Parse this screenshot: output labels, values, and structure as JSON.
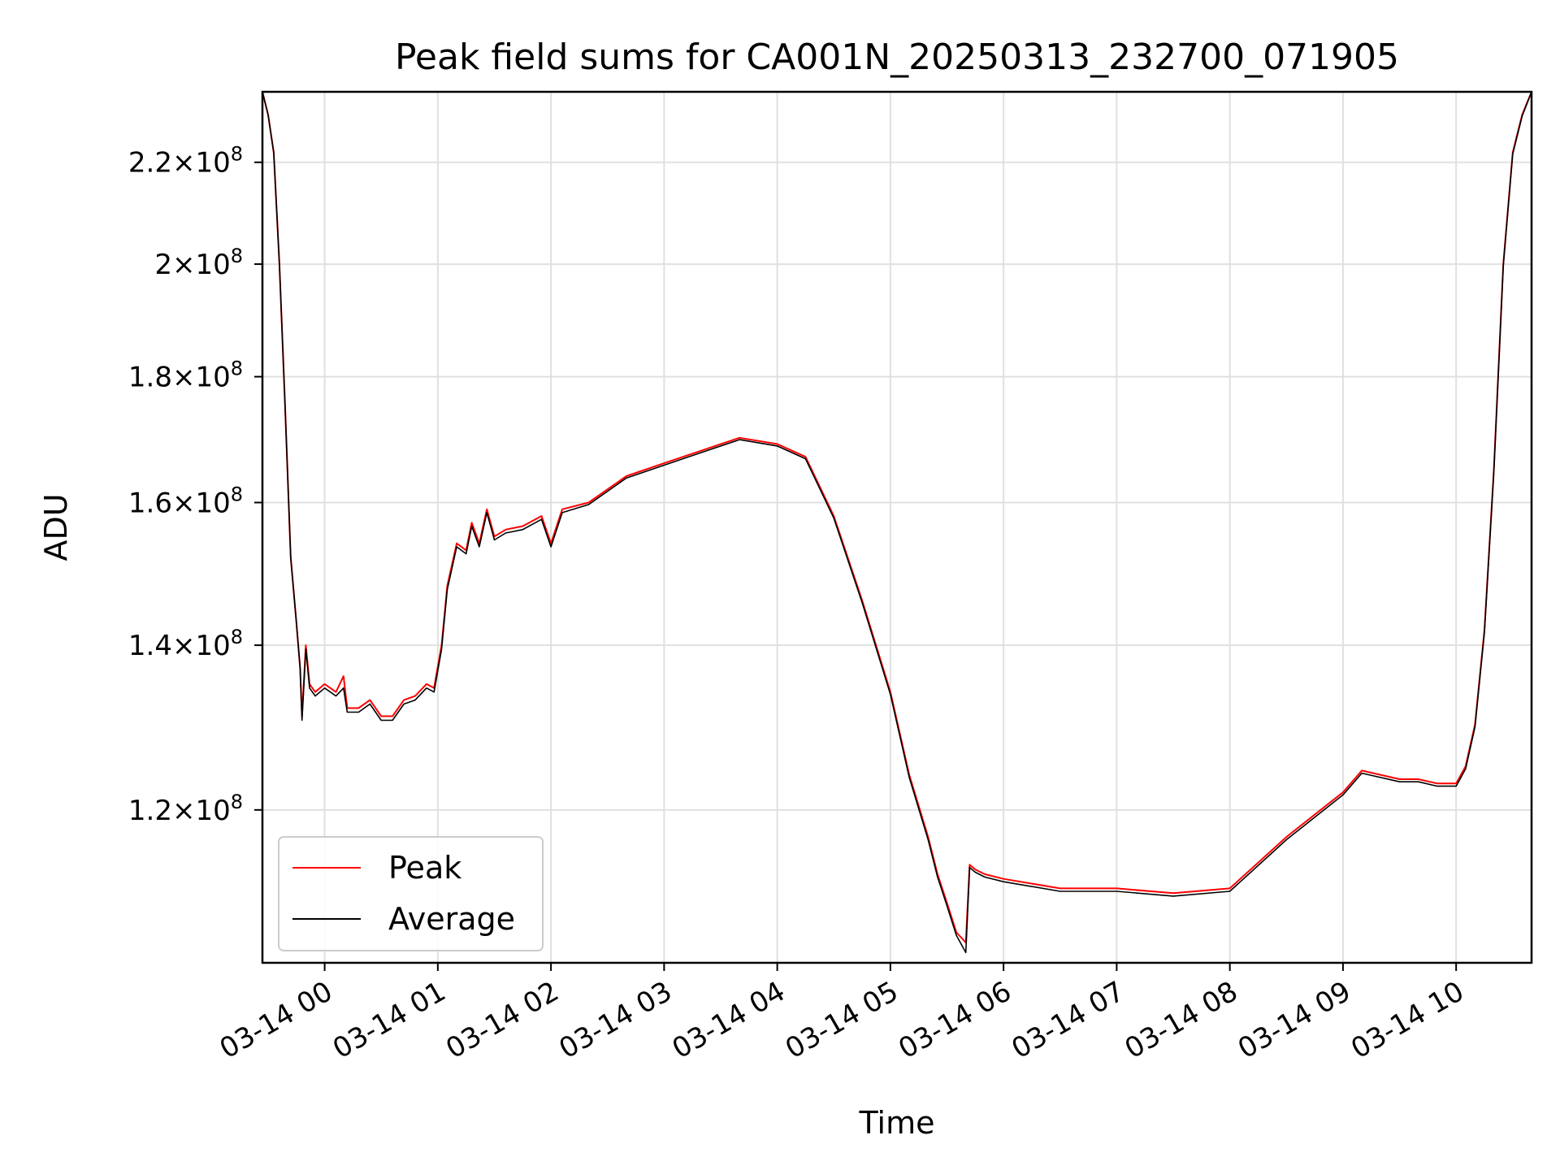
{
  "chart_data": {
    "type": "line",
    "title": "Peak field sums for CA001N_20250313_232700_071905",
    "xlabel": "Time",
    "ylabel": "ADU",
    "x_ticks": [
      "03-14 00",
      "03-14 01",
      "03-14 02",
      "03-14 03",
      "03-14 04",
      "03-14 05",
      "03-14 06",
      "03-14 07",
      "03-14 08",
      "03-14 09",
      "03-14 10"
    ],
    "x_range": [
      "03-13 23:27",
      "03-14 10:40"
    ],
    "y_scale": "log",
    "y_ticks": [
      {
        "value": 120000000,
        "mantissa": "1.2",
        "exponent": "8"
      },
      {
        "value": 140000000,
        "mantissa": "1.4",
        "exponent": "8"
      },
      {
        "value": 160000000,
        "mantissa": "1.6",
        "exponent": "8"
      },
      {
        "value": 180000000,
        "mantissa": "1.8",
        "exponent": "8"
      },
      {
        "value": 200000000,
        "mantissa": "2",
        "exponent": "8"
      },
      {
        "value": 220000000,
        "mantissa": "2.2",
        "exponent": "8"
      }
    ],
    "ylim": [
      104000000,
      235000000
    ],
    "grid": true,
    "legend_position": "lower-left",
    "x_unit": "hours",
    "series": [
      {
        "name": "Peak",
        "color": "#ff0000",
        "points": [
          [
            "03-13 23:27",
            235000000
          ],
          [
            "03-13 23:30",
            230000000
          ],
          [
            "03-13 23:33",
            222000000
          ],
          [
            "03-13 23:36",
            200000000
          ],
          [
            "03-13 23:39",
            175000000
          ],
          [
            "03-13 23:42",
            152000000
          ],
          [
            "03-13 23:45",
            143000000
          ],
          [
            "03-13 23:47",
            137000000
          ],
          [
            "03-13 23:48",
            131000000
          ],
          [
            "03-13 23:50",
            140000000
          ],
          [
            "03-13 23:52",
            135000000
          ],
          [
            "03-13 23:55",
            134000000
          ],
          [
            "03-14 00:00",
            135000000
          ],
          [
            "03-14 00:06",
            134000000
          ],
          [
            "03-14 00:10",
            136000000
          ],
          [
            "03-14 00:12",
            132000000
          ],
          [
            "03-14 00:18",
            132000000
          ],
          [
            "03-14 00:24",
            133000000
          ],
          [
            "03-14 00:30",
            131000000
          ],
          [
            "03-14 00:36",
            131000000
          ],
          [
            "03-14 00:42",
            133000000
          ],
          [
            "03-14 00:48",
            133500000
          ],
          [
            "03-14 00:54",
            135000000
          ],
          [
            "03-14 00:58",
            134500000
          ],
          [
            "03-14 01:02",
            140000000
          ],
          [
            "03-14 01:05",
            148000000
          ],
          [
            "03-14 01:10",
            154000000
          ],
          [
            "03-14 01:15",
            153000000
          ],
          [
            "03-14 01:18",
            157000000
          ],
          [
            "03-14 01:22",
            154000000
          ],
          [
            "03-14 01:26",
            159000000
          ],
          [
            "03-14 01:30",
            155000000
          ],
          [
            "03-14 01:36",
            156000000
          ],
          [
            "03-14 01:45",
            156500000
          ],
          [
            "03-14 01:55",
            158000000
          ],
          [
            "03-14 02:00",
            154000000
          ],
          [
            "03-14 02:06",
            159000000
          ],
          [
            "03-14 02:20",
            160000000
          ],
          [
            "03-14 02:40",
            164000000
          ],
          [
            "03-14 03:00",
            166000000
          ],
          [
            "03-14 03:20",
            168000000
          ],
          [
            "03-14 03:40",
            170000000
          ],
          [
            "03-14 04:00",
            169000000
          ],
          [
            "03-14 04:15",
            167000000
          ],
          [
            "03-14 04:30",
            158000000
          ],
          [
            "03-14 04:45",
            146000000
          ],
          [
            "03-14 05:00",
            134000000
          ],
          [
            "03-14 05:10",
            124000000
          ],
          [
            "03-14 05:20",
            117000000
          ],
          [
            "03-14 05:25",
            113000000
          ],
          [
            "03-14 05:30",
            110000000
          ],
          [
            "03-14 05:35",
            107000000
          ],
          [
            "03-14 05:40",
            106000000
          ],
          [
            "03-14 05:42",
            114000000
          ],
          [
            "03-14 05:45",
            113500000
          ],
          [
            "03-14 05:50",
            113000000
          ],
          [
            "03-14 06:00",
            112500000
          ],
          [
            "03-14 06:30",
            111500000
          ],
          [
            "03-14 07:00",
            111500000
          ],
          [
            "03-14 07:30",
            111000000
          ],
          [
            "03-14 08:00",
            111500000
          ],
          [
            "03-14 08:30",
            117000000
          ],
          [
            "03-14 09:00",
            122000000
          ],
          [
            "03-14 09:10",
            124500000
          ],
          [
            "03-14 09:30",
            123500000
          ],
          [
            "03-14 09:40",
            123500000
          ],
          [
            "03-14 09:50",
            123000000
          ],
          [
            "03-14 10:00",
            123000000
          ],
          [
            "03-14 10:05",
            125000000
          ],
          [
            "03-14 10:10",
            130000000
          ],
          [
            "03-14 10:15",
            142000000
          ],
          [
            "03-14 10:20",
            165000000
          ],
          [
            "03-14 10:25",
            200000000
          ],
          [
            "03-14 10:30",
            222000000
          ],
          [
            "03-14 10:35",
            230000000
          ],
          [
            "03-14 10:40",
            235000000
          ]
        ]
      },
      {
        "name": "Average",
        "color": "#000000",
        "points": [
          [
            "03-13 23:27",
            235000000
          ],
          [
            "03-13 23:30",
            230000000
          ],
          [
            "03-13 23:33",
            222000000
          ],
          [
            "03-13 23:36",
            200000000
          ],
          [
            "03-13 23:39",
            175000000
          ],
          [
            "03-13 23:42",
            152000000
          ],
          [
            "03-13 23:45",
            143000000
          ],
          [
            "03-13 23:47",
            137000000
          ],
          [
            "03-13 23:48",
            130500000
          ],
          [
            "03-13 23:50",
            139500000
          ],
          [
            "03-13 23:52",
            134500000
          ],
          [
            "03-13 23:55",
            133500000
          ],
          [
            "03-14 00:00",
            134500000
          ],
          [
            "03-14 00:06",
            133500000
          ],
          [
            "03-14 00:10",
            134500000
          ],
          [
            "03-14 00:12",
            131500000
          ],
          [
            "03-14 00:18",
            131500000
          ],
          [
            "03-14 00:24",
            132500000
          ],
          [
            "03-14 00:30",
            130500000
          ],
          [
            "03-14 00:36",
            130500000
          ],
          [
            "03-14 00:42",
            132500000
          ],
          [
            "03-14 00:48",
            133000000
          ],
          [
            "03-14 00:54",
            134500000
          ],
          [
            "03-14 00:58",
            134000000
          ],
          [
            "03-14 01:02",
            139500000
          ],
          [
            "03-14 01:05",
            147500000
          ],
          [
            "03-14 01:10",
            153500000
          ],
          [
            "03-14 01:15",
            152500000
          ],
          [
            "03-14 01:18",
            156500000
          ],
          [
            "03-14 01:22",
            153500000
          ],
          [
            "03-14 01:26",
            158500000
          ],
          [
            "03-14 01:30",
            154500000
          ],
          [
            "03-14 01:36",
            155500000
          ],
          [
            "03-14 01:45",
            156000000
          ],
          [
            "03-14 01:55",
            157500000
          ],
          [
            "03-14 02:00",
            153500000
          ],
          [
            "03-14 02:06",
            158500000
          ],
          [
            "03-14 02:20",
            159700000
          ],
          [
            "03-14 02:40",
            163700000
          ],
          [
            "03-14 03:00",
            165700000
          ],
          [
            "03-14 03:20",
            167700000
          ],
          [
            "03-14 03:40",
            169700000
          ],
          [
            "03-14 04:00",
            168700000
          ],
          [
            "03-14 04:15",
            166700000
          ],
          [
            "03-14 04:30",
            157700000
          ],
          [
            "03-14 04:45",
            145700000
          ],
          [
            "03-14 05:00",
            133700000
          ],
          [
            "03-14 05:10",
            123700000
          ],
          [
            "03-14 05:20",
            116700000
          ],
          [
            "03-14 05:25",
            112700000
          ],
          [
            "03-14 05:30",
            109700000
          ],
          [
            "03-14 05:35",
            106700000
          ],
          [
            "03-14 05:40",
            105000000
          ],
          [
            "03-14 05:42",
            113700000
          ],
          [
            "03-14 05:45",
            113200000
          ],
          [
            "03-14 05:50",
            112700000
          ],
          [
            "03-14 06:00",
            112200000
          ],
          [
            "03-14 06:30",
            111200000
          ],
          [
            "03-14 07:00",
            111200000
          ],
          [
            "03-14 07:30",
            110700000
          ],
          [
            "03-14 08:00",
            111200000
          ],
          [
            "03-14 08:30",
            116700000
          ],
          [
            "03-14 09:00",
            121700000
          ],
          [
            "03-14 09:10",
            124200000
          ],
          [
            "03-14 09:30",
            123200000
          ],
          [
            "03-14 09:40",
            123200000
          ],
          [
            "03-14 09:50",
            122700000
          ],
          [
            "03-14 10:00",
            122700000
          ],
          [
            "03-14 10:05",
            124700000
          ],
          [
            "03-14 10:10",
            129700000
          ],
          [
            "03-14 10:15",
            141700000
          ],
          [
            "03-14 10:20",
            164700000
          ],
          [
            "03-14 10:25",
            199700000
          ],
          [
            "03-14 10:30",
            221700000
          ],
          [
            "03-14 10:35",
            229700000
          ],
          [
            "03-14 10:40",
            235000000
          ]
        ]
      }
    ]
  }
}
